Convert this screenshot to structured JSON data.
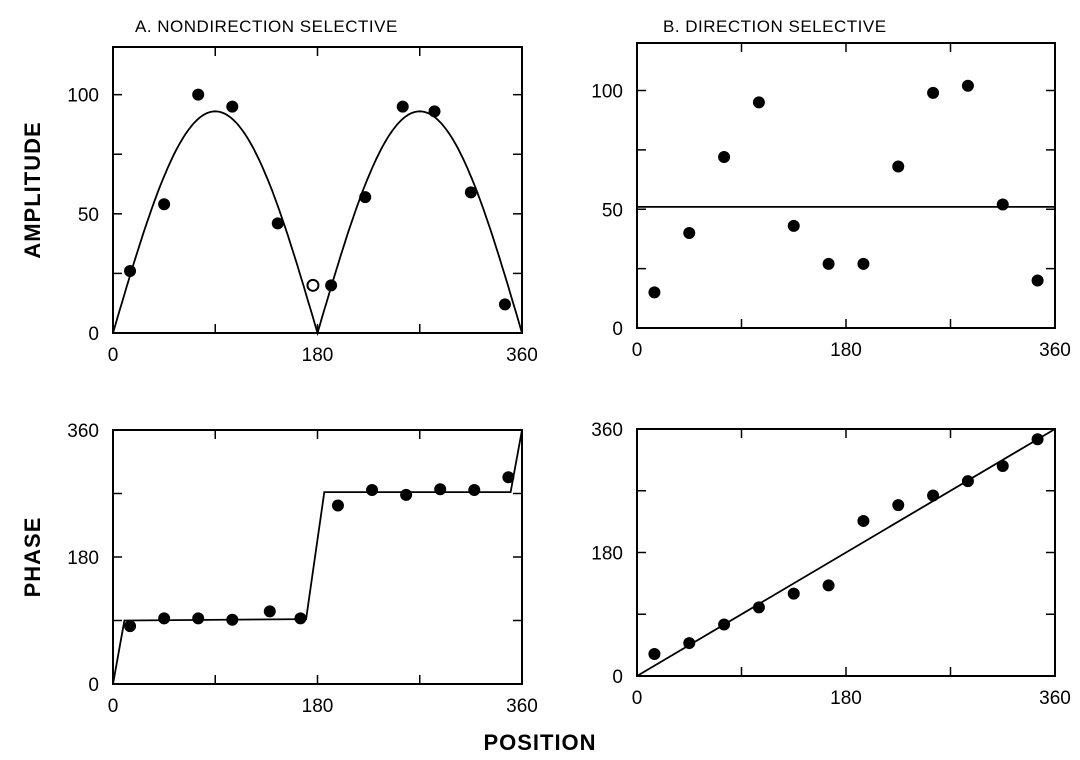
{
  "chart_data": [
    {
      "type": "scatter",
      "id": "A-amplitude",
      "title": "A. NONDIRECTION  SELECTIVE",
      "ylabel": "AMPLITUDE",
      "xlabel": "",
      "xlim": [
        0,
        360
      ],
      "ylim": [
        0,
        120
      ],
      "xticks": [
        0,
        180,
        360
      ],
      "yticks": [
        0,
        50,
        100
      ],
      "points": [
        [
          15,
          26
        ],
        [
          45,
          54
        ],
        [
          75,
          100
        ],
        [
          105,
          95
        ],
        [
          145,
          46
        ],
        [
          176,
          20,
          "open"
        ],
        [
          192,
          20
        ],
        [
          222,
          57
        ],
        [
          255,
          95
        ],
        [
          283,
          93
        ],
        [
          315,
          59
        ],
        [
          345,
          12
        ]
      ],
      "curve": {
        "kind": "abs-sine",
        "peak": 93
      }
    },
    {
      "type": "scatter",
      "id": "B-amplitude",
      "title": "B. DIRECTION  SELECTIVE",
      "ylabel": "",
      "xlabel": "",
      "xlim": [
        0,
        360
      ],
      "ylim": [
        0,
        120
      ],
      "xticks": [
        0,
        180,
        360
      ],
      "yticks": [
        0,
        50,
        100
      ],
      "points": [
        [
          15,
          15
        ],
        [
          45,
          40
        ],
        [
          75,
          72
        ],
        [
          105,
          95
        ],
        [
          135,
          43
        ],
        [
          165,
          27
        ],
        [
          195,
          27
        ],
        [
          225,
          68
        ],
        [
          255,
          99
        ],
        [
          285,
          102
        ],
        [
          315,
          52
        ],
        [
          345,
          20
        ]
      ],
      "curve": {
        "kind": "hline",
        "y": 51
      }
    },
    {
      "type": "scatter",
      "id": "A-phase",
      "title": "",
      "ylabel": "PHASE",
      "xlabel": "",
      "xlim": [
        0,
        360
      ],
      "ylim": [
        0,
        360
      ],
      "xticks": [
        0,
        180,
        360
      ],
      "yticks": [
        0,
        180,
        360
      ],
      "points": [
        [
          15,
          82
        ],
        [
          45,
          93
        ],
        [
          75,
          93
        ],
        [
          105,
          91
        ],
        [
          138,
          103
        ],
        [
          165,
          93
        ],
        [
          198,
          253
        ],
        [
          228,
          275
        ],
        [
          258,
          268
        ],
        [
          288,
          276
        ],
        [
          318,
          275
        ],
        [
          348,
          293
        ]
      ],
      "curve": {
        "kind": "polyline",
        "pts": [
          [
            0,
            0
          ],
          [
            10,
            90
          ],
          [
            170,
            92
          ],
          [
            186,
            272
          ],
          [
            350,
            272
          ],
          [
            360,
            360
          ]
        ]
      }
    },
    {
      "type": "scatter",
      "id": "B-phase",
      "title": "",
      "ylabel": "",
      "xlabel": "",
      "xlim": [
        0,
        360
      ],
      "ylim": [
        0,
        360
      ],
      "xticks": [
        0,
        180,
        360
      ],
      "yticks": [
        0,
        180,
        360
      ],
      "points": [
        [
          15,
          32
        ],
        [
          45,
          48
        ],
        [
          75,
          75
        ],
        [
          105,
          100
        ],
        [
          135,
          120
        ],
        [
          165,
          132
        ],
        [
          195,
          226
        ],
        [
          225,
          249
        ],
        [
          255,
          263
        ],
        [
          285,
          284
        ],
        [
          315,
          306
        ],
        [
          345,
          345
        ]
      ],
      "curve": {
        "kind": "polyline",
        "pts": [
          [
            0,
            0
          ],
          [
            360,
            360
          ]
        ]
      }
    }
  ],
  "shared_xlabel": "POSITION"
}
